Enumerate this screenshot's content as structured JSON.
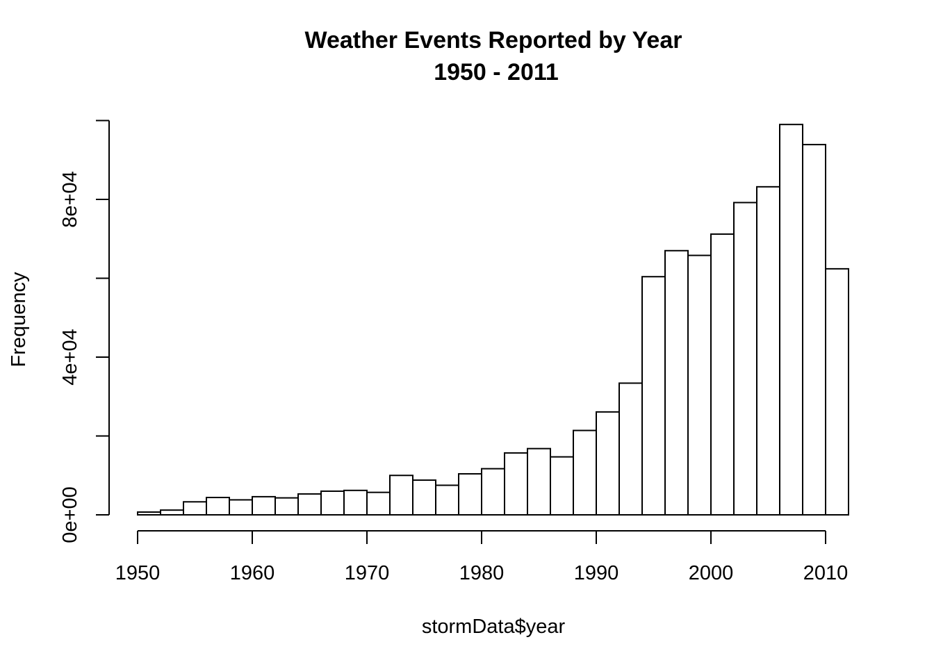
{
  "chart_data": {
    "type": "bar",
    "title": [
      "Weather Events Reported by Year",
      "1950 - 2011"
    ],
    "xlabel": "stormData$year",
    "ylabel": "Frequency",
    "x_ticks": [
      1950,
      1960,
      1970,
      1980,
      1990,
      2000,
      2010
    ],
    "x_tick_labels": [
      "1950",
      "1960",
      "1970",
      "1980",
      "1990",
      "2000",
      "2010"
    ],
    "y_ticks": [
      0,
      20000,
      40000,
      60000,
      80000,
      100000
    ],
    "y_tick_labels": [
      "0e+00",
      "",
      "4e+04",
      "",
      "8e+04",
      ""
    ],
    "xlim": [
      1950,
      2012
    ],
    "ylim": [
      0,
      100000
    ],
    "grid": false,
    "bin_width": 2,
    "bins": [
      {
        "start": 1950,
        "end": 1952,
        "value": 700
      },
      {
        "start": 1952,
        "end": 1954,
        "value": 1200
      },
      {
        "start": 1954,
        "end": 1956,
        "value": 3300
      },
      {
        "start": 1956,
        "end": 1958,
        "value": 4400
      },
      {
        "start": 1958,
        "end": 1960,
        "value": 3800
      },
      {
        "start": 1960,
        "end": 1962,
        "value": 4600
      },
      {
        "start": 1962,
        "end": 1964,
        "value": 4300
      },
      {
        "start": 1964,
        "end": 1966,
        "value": 5300
      },
      {
        "start": 1966,
        "end": 1968,
        "value": 6000
      },
      {
        "start": 1968,
        "end": 1970,
        "value": 6200
      },
      {
        "start": 1970,
        "end": 1972,
        "value": 5700
      },
      {
        "start": 1972,
        "end": 1974,
        "value": 10000
      },
      {
        "start": 1974,
        "end": 1976,
        "value": 8800
      },
      {
        "start": 1976,
        "end": 1978,
        "value": 7500
      },
      {
        "start": 1978,
        "end": 1980,
        "value": 10400
      },
      {
        "start": 1980,
        "end": 1982,
        "value": 11700
      },
      {
        "start": 1982,
        "end": 1984,
        "value": 15700
      },
      {
        "start": 1984,
        "end": 1986,
        "value": 16800
      },
      {
        "start": 1986,
        "end": 1988,
        "value": 14700
      },
      {
        "start": 1988,
        "end": 1990,
        "value": 21400
      },
      {
        "start": 1990,
        "end": 1992,
        "value": 26100
      },
      {
        "start": 1992,
        "end": 1994,
        "value": 33400
      },
      {
        "start": 1994,
        "end": 1996,
        "value": 60400
      },
      {
        "start": 1996,
        "end": 1998,
        "value": 67000
      },
      {
        "start": 1998,
        "end": 2000,
        "value": 65800
      },
      {
        "start": 2000,
        "end": 2002,
        "value": 71200
      },
      {
        "start": 2002,
        "end": 2004,
        "value": 79200
      },
      {
        "start": 2004,
        "end": 2006,
        "value": 83200
      },
      {
        "start": 2006,
        "end": 2008,
        "value": 99000
      },
      {
        "start": 2008,
        "end": 2010,
        "value": 93900
      },
      {
        "start": 2010,
        "end": 2012,
        "value": 62400
      }
    ]
  }
}
